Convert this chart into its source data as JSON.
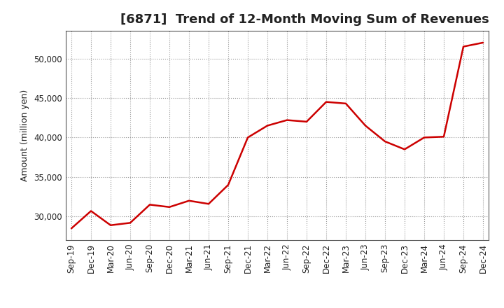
{
  "title": "[6871]  Trend of 12-Month Moving Sum of Revenues",
  "ylabel": "Amount (million yen)",
  "background_color": "#ffffff",
  "plot_bg_color": "#ffffff",
  "grid_color": "#999999",
  "line_color": "#cc0000",
  "line_width": 1.8,
  "x_labels": [
    "Sep-19",
    "Dec-19",
    "Mar-20",
    "Jun-20",
    "Sep-20",
    "Dec-20",
    "Mar-21",
    "Jun-21",
    "Sep-21",
    "Dec-21",
    "Mar-22",
    "Jun-22",
    "Sep-22",
    "Dec-22",
    "Mar-23",
    "Jun-23",
    "Sep-23",
    "Dec-23",
    "Mar-24",
    "Jun-24",
    "Sep-24",
    "Dec-24"
  ],
  "values": [
    28500,
    30700,
    28900,
    29200,
    31500,
    31200,
    32000,
    31600,
    34000,
    40000,
    41500,
    42200,
    42000,
    44500,
    44300,
    41500,
    39500,
    38500,
    40000,
    40100,
    51500,
    52000
  ],
  "ylim": [
    27000,
    53500
  ],
  "yticks": [
    30000,
    35000,
    40000,
    45000,
    50000
  ],
  "title_fontsize": 13,
  "ylabel_fontsize": 9,
  "tick_fontsize": 8.5
}
